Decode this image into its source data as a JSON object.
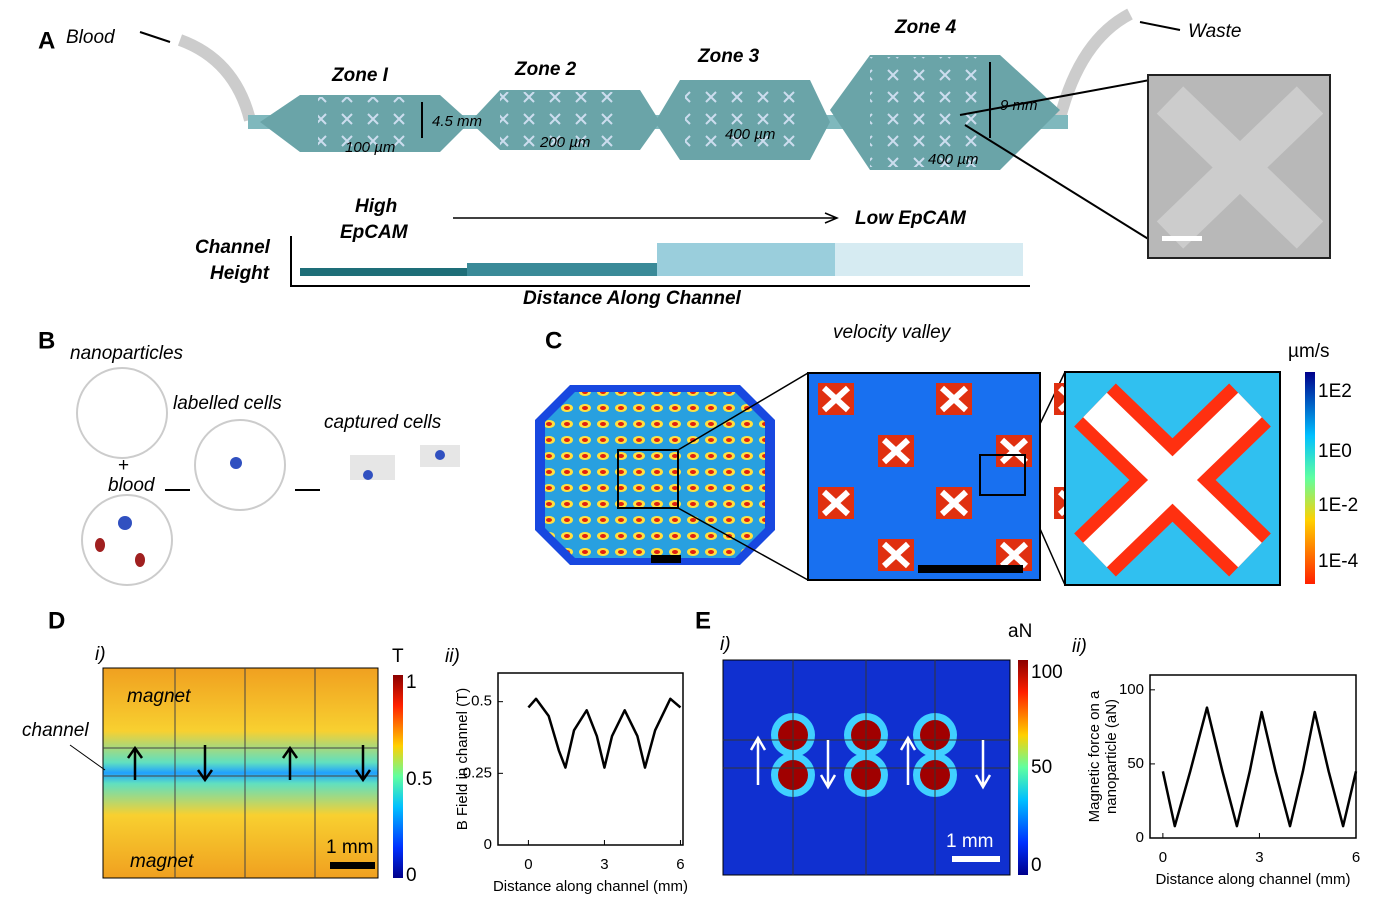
{
  "panel_a": {
    "label": "A",
    "inlet": "Blood",
    "outlet": "Waste",
    "zones": [
      {
        "name": "Zone I",
        "gap": "100 µm"
      },
      {
        "name": "Zone 2",
        "gap": "200 µm"
      },
      {
        "name": "Zone 3",
        "gap": "400 µm"
      },
      {
        "name": "Zone 4",
        "gap": "400 µm"
      }
    ],
    "height_small": "4.5 mm",
    "height_large": "9 mm",
    "high": "High",
    "high2": "EpCAM",
    "low": "Low EpCAM",
    "ylabel1": "Channel",
    "ylabel2": "Height",
    "xlabel": "Distance Along Channel"
  },
  "panel_b": {
    "label": "B",
    "nanoparticles": "nanoparticles",
    "plus": "+",
    "blood": "blood",
    "labelled": "labelled cells",
    "captured": "captured cells"
  },
  "panel_c": {
    "label": "C",
    "annotation": "velocity valley",
    "unit": "µm/s",
    "scale": [
      "1E2",
      "1E0",
      "1E-2",
      "1E-4"
    ]
  },
  "panel_d": {
    "label": "D",
    "sub1": "i)",
    "sub2": "ii)",
    "unit": "T",
    "scale": [
      "1",
      "0.5",
      "0"
    ],
    "magnet_top": "magnet",
    "magnet_bottom": "magnet",
    "channel": "channel",
    "scalebar": "1 mm",
    "plot": {
      "type": "line",
      "ylabel": "B Field in channel  (T)",
      "xlabel": "Distance  along  channel  (mm)",
      "x": [
        0,
        0.3,
        0.8,
        1.2,
        1.46,
        1.8,
        2.3,
        2.7,
        3.0,
        3.3,
        3.8,
        4.3,
        4.6,
        5.0,
        5.6,
        6
      ],
      "values": [
        0.48,
        0.51,
        0.45,
        0.33,
        0.27,
        0.4,
        0.47,
        0.38,
        0.27,
        0.38,
        0.47,
        0.38,
        0.27,
        0.4,
        0.51,
        0.48
      ],
      "xlim": [
        -1.2,
        6.1
      ],
      "ylim": [
        0,
        0.6
      ],
      "xticks": [
        0,
        3,
        6
      ],
      "yticks": [
        0,
        0.25,
        0.5
      ]
    }
  },
  "panel_e": {
    "label": "E",
    "sub1": "i)",
    "sub2": "ii)",
    "unit": "aN",
    "scale": [
      "100",
      "50",
      "0"
    ],
    "scalebar": "1 mm",
    "plot": {
      "type": "line",
      "ylabel": "Magnetic force on a",
      "ylabel2": "nanoparticle (aN)",
      "xlabel": "Distance  along  channel  (mm)",
      "x": [
        0,
        0.37,
        0.85,
        1.37,
        1.85,
        2.3,
        2.7,
        3.07,
        3.5,
        3.95,
        4.35,
        4.72,
        5.15,
        5.6,
        6
      ],
      "values": [
        45,
        8,
        45,
        88,
        45,
        8,
        45,
        85,
        45,
        8,
        45,
        85,
        45,
        8,
        45
      ],
      "xlim": [
        -0.4,
        6
      ],
      "ylim": [
        0,
        110
      ],
      "xticks": [
        0,
        3,
        6
      ],
      "yticks": [
        0,
        50,
        100
      ]
    }
  }
}
